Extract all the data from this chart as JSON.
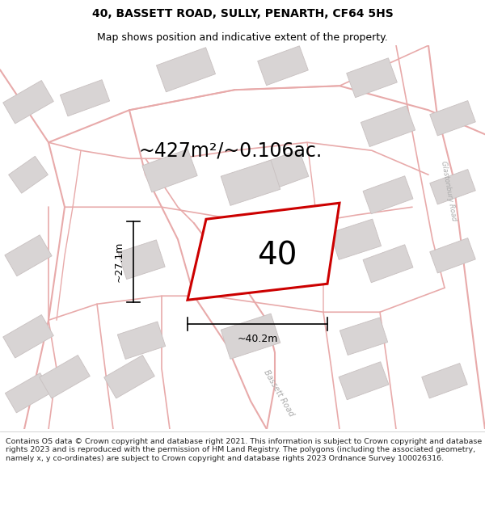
{
  "title": "40, BASSETT ROAD, SULLY, PENARTH, CF64 5HS",
  "subtitle": "Map shows position and indicative extent of the property.",
  "area_text": "~427m²/~0.106ac.",
  "width_label": "~40.2m",
  "height_label": "~27.1m",
  "property_number": "40",
  "footer": "Contains OS data © Crown copyright and database right 2021. This information is subject to Crown copyright and database rights 2023 and is reproduced with the permission of HM Land Registry. The polygons (including the associated geometry, namely x, y co-ordinates) are subject to Crown copyright and database rights 2023 Ordnance Survey 100026316.",
  "bg_color": "#faf8f8",
  "road_color": "#e8aaaa",
  "building_fill": "#d8d4d4",
  "building_edge": "#c8c0c0",
  "property_edge": "#cc0000",
  "property_fill": "#ffffff",
  "text_color": "#000000",
  "road_label_color": "#aaaaaa",
  "footer_color": "#222222",
  "title_fontsize": 10,
  "subtitle_fontsize": 9,
  "area_fontsize": 17,
  "property_fontsize": 28,
  "dim_fontsize": 9,
  "footer_fontsize": 6.8
}
